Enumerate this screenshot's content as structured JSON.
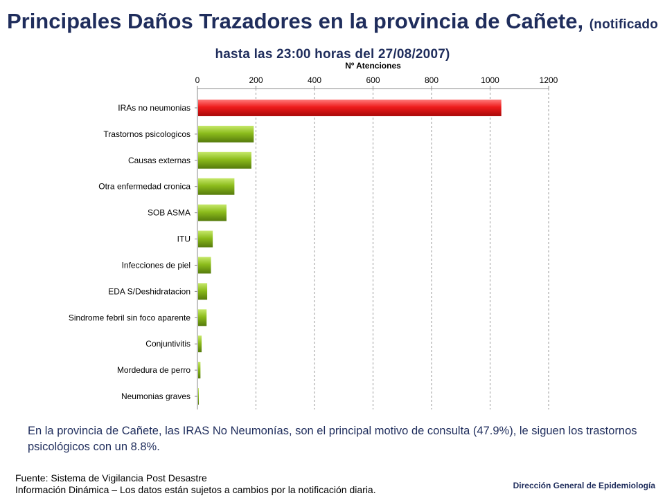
{
  "title": {
    "main": "Principales Daños Trazadores en la provincia de Cañete,",
    "sub": "(notificado hasta las 23:00 horas del 27/08/2007)"
  },
  "chart_data": {
    "type": "bar",
    "orientation": "horizontal",
    "xlabel": "Nº Atenciones",
    "xlim": [
      0,
      1200
    ],
    "xticks": [
      0,
      200,
      400,
      600,
      800,
      1000,
      1200
    ],
    "grid": "vertical-dashed",
    "categories": [
      "IRAs no neumonias",
      "Trastornos psicologicos",
      "Causas externas",
      "Otra enfermedad cronica",
      "SOB ASMA",
      "ITU",
      "Infecciones de piel",
      "EDA S/Deshidratacion",
      "Sindrome febril sin foco aparente",
      "Conjuntivitis",
      "Mordedura de perro",
      "Neumonias graves"
    ],
    "values": [
      1036,
      190,
      182,
      124,
      97,
      50,
      44,
      31,
      29,
      12,
      8,
      2
    ],
    "colors": {
      "highlight": "#e8141a",
      "default": "#7fb21a"
    }
  },
  "summary": "En la provincia de Cañete, las IRAS No Neumonías, son el principal motivo de consulta (47.9%), le siguen los trastornos psicológicos con un 8.8%.",
  "source": {
    "line1": "Fuente: Sistema de Vigilancia Post Desastre",
    "line2": "Información Dinámica – Los datos están sujetos a cambios por la notificación diaria."
  },
  "footer_org": "Dirección General de Epidemiología"
}
